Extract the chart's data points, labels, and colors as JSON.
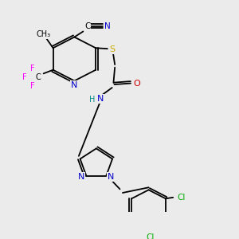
{
  "bg_color": "#ebebeb",
  "atom_colors": {
    "C": "#000000",
    "N": "#0000cc",
    "O": "#cc0000",
    "S": "#ccaa00",
    "F": "#ff00ff",
    "Cl": "#00aa00",
    "H": "#008888"
  },
  "bond_color": "#000000",
  "lw": 1.3
}
